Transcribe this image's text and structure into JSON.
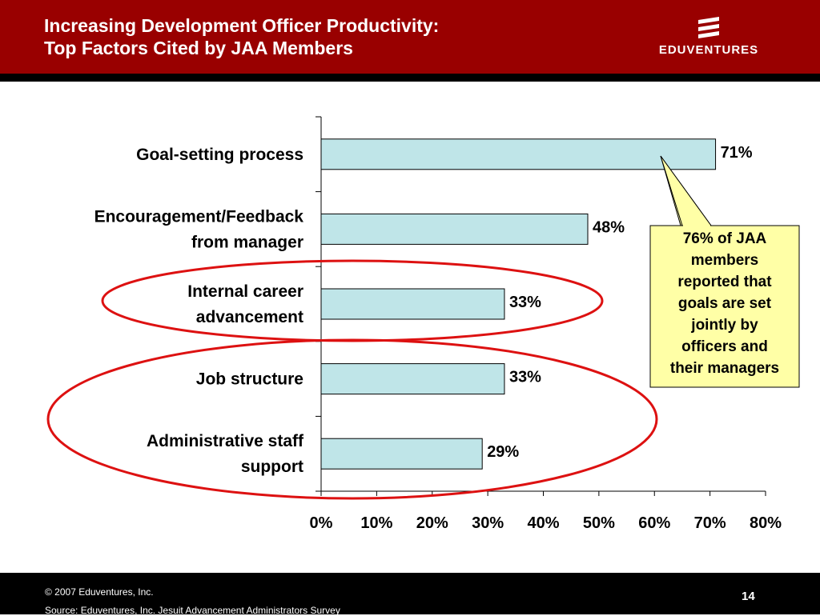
{
  "header": {
    "title_line1": "Increasing Development Officer Productivity:",
    "title_line2": "Top Factors Cited by JAA Members",
    "logo_text": "EDUVENTURES"
  },
  "colors": {
    "header_bg": "#990000",
    "bar_fill": "#BFE5E8",
    "callout_fill": "#FFFFA6",
    "ellipse_stroke": "#DD1111"
  },
  "chart_data": {
    "type": "bar",
    "orientation": "horizontal",
    "categories": [
      [
        "Goal-setting process"
      ],
      [
        "Encouragement/Feedback",
        "from manager"
      ],
      [
        "Internal career",
        "advancement"
      ],
      [
        "Job structure"
      ],
      [
        "Administrative staff",
        "support"
      ]
    ],
    "values": [
      71,
      48,
      33,
      33,
      29
    ],
    "value_labels": [
      "71%",
      "48%",
      "33%",
      "33%",
      "29%"
    ],
    "xlim": [
      0,
      80
    ],
    "xticks": [
      0,
      10,
      20,
      30,
      40,
      50,
      60,
      70,
      80
    ],
    "xtick_labels": [
      "0%",
      "10%",
      "20%",
      "30%",
      "40%",
      "50%",
      "60%",
      "70%",
      "80%"
    ],
    "grid": false,
    "highlighted_categories": [
      2,
      3,
      4
    ]
  },
  "callout": {
    "lines": [
      "76% of JAA",
      "members",
      "reported that",
      "goals are set",
      "jointly by",
      "officers and",
      "their managers"
    ]
  },
  "footer": {
    "copyright": "© 2007 Eduventures, Inc.",
    "source": "Source: Eduventures, Inc. Jesuit Advancement Administrators Survey",
    "page_number": "14"
  }
}
